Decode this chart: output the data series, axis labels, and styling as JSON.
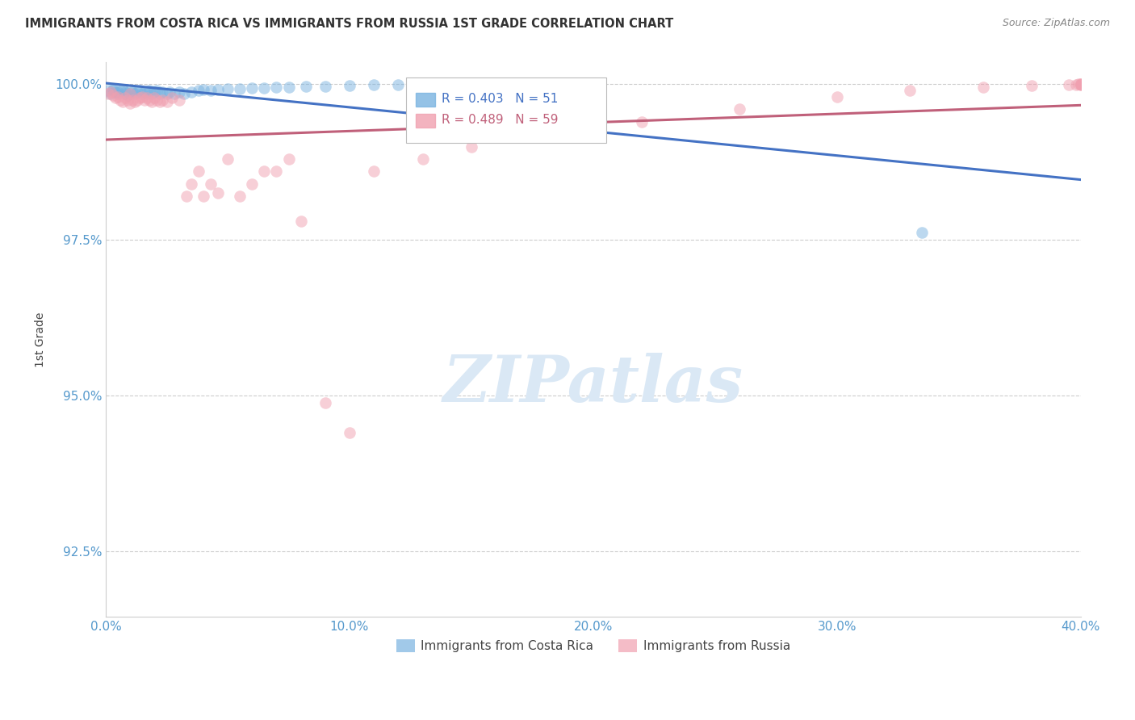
{
  "title": "IMMIGRANTS FROM COSTA RICA VS IMMIGRANTS FROM RUSSIA 1ST GRADE CORRELATION CHART",
  "source": "Source: ZipAtlas.com",
  "ylabel": "1st Grade",
  "xmin": 0.0,
  "xmax": 0.4,
  "ymin": 0.9145,
  "ymax": 1.0035,
  "yticks": [
    0.925,
    0.95,
    0.975,
    1.0
  ],
  "ytick_labels": [
    "92.5%",
    "95.0%",
    "97.5%",
    "100.0%"
  ],
  "xtick_labels": [
    "0.0%",
    "10.0%",
    "20.0%",
    "30.0%",
    "40.0%"
  ],
  "xtick_vals": [
    0.0,
    0.1,
    0.2,
    0.3,
    0.4
  ],
  "costa_rica_color": "#7ab3e0",
  "russia_color": "#f0a0b0",
  "costa_rica_line_color": "#4472c4",
  "russia_line_color": "#c0607a",
  "watermark_color": "#dae8f5",
  "background_color": "#ffffff",
  "grid_color": "#cccccc",
  "axis_color": "#cccccc",
  "title_fontsize": 11,
  "tick_label_color": "#5599cc",
  "cr_R": "R = 0.403",
  "cr_N": "N = 51",
  "ru_R": "R = 0.489",
  "ru_N": "N = 59",
  "legend_cr": "Immigrants from Costa Rica",
  "legend_ru": "Immigrants from Russia",
  "costa_rica_x": [
    0.001,
    0.002,
    0.003,
    0.003,
    0.004,
    0.005,
    0.005,
    0.006,
    0.007,
    0.008,
    0.008,
    0.009,
    0.01,
    0.01,
    0.011,
    0.012,
    0.013,
    0.014,
    0.015,
    0.016,
    0.017,
    0.018,
    0.019,
    0.02,
    0.021,
    0.022,
    0.023,
    0.025,
    0.026,
    0.028,
    0.03,
    0.032,
    0.035,
    0.038,
    0.04,
    0.043,
    0.046,
    0.05,
    0.055,
    0.06,
    0.065,
    0.07,
    0.075,
    0.082,
    0.09,
    0.1,
    0.11,
    0.12,
    0.13,
    0.15,
    0.335
  ],
  "costa_rica_y": [
    0.999,
    0.9985,
    0.999,
    0.9992,
    0.9988,
    0.9985,
    0.9988,
    0.999,
    0.9992,
    0.9985,
    0.9988,
    0.9982,
    0.9985,
    0.999,
    0.9988,
    0.9985,
    0.9988,
    0.999,
    0.9985,
    0.9988,
    0.9985,
    0.999,
    0.9985,
    0.9988,
    0.999,
    0.9985,
    0.9988,
    0.9985,
    0.9988,
    0.9985,
    0.9988,
    0.9985,
    0.9988,
    0.999,
    0.9992,
    0.999,
    0.9992,
    0.9993,
    0.9993,
    0.9994,
    0.9994,
    0.9995,
    0.9996,
    0.9997,
    0.9997,
    0.9998,
    0.9999,
    0.9999,
    1.0,
    1.0,
    0.9762
  ],
  "russia_x": [
    0.001,
    0.002,
    0.003,
    0.004,
    0.005,
    0.006,
    0.007,
    0.008,
    0.009,
    0.01,
    0.01,
    0.011,
    0.012,
    0.013,
    0.014,
    0.015,
    0.016,
    0.017,
    0.018,
    0.019,
    0.02,
    0.021,
    0.022,
    0.023,
    0.025,
    0.027,
    0.03,
    0.033,
    0.035,
    0.038,
    0.04,
    0.043,
    0.046,
    0.05,
    0.055,
    0.06,
    0.065,
    0.07,
    0.075,
    0.08,
    0.09,
    0.1,
    0.11,
    0.13,
    0.15,
    0.18,
    0.22,
    0.26,
    0.3,
    0.33,
    0.36,
    0.38,
    0.395,
    0.398,
    0.399,
    0.4,
    0.4,
    0.4,
    0.4
  ],
  "russia_y": [
    0.9985,
    0.9988,
    0.9982,
    0.9978,
    0.998,
    0.9975,
    0.9972,
    0.9978,
    0.9975,
    0.997,
    0.9985,
    0.9975,
    0.9972,
    0.9975,
    0.9978,
    0.998,
    0.9975,
    0.9978,
    0.9975,
    0.9972,
    0.9978,
    0.9975,
    0.9972,
    0.9975,
    0.9972,
    0.9978,
    0.9975,
    0.982,
    0.984,
    0.986,
    0.982,
    0.984,
    0.9825,
    0.988,
    0.982,
    0.984,
    0.986,
    0.986,
    0.988,
    0.978,
    0.9488,
    0.944,
    0.986,
    0.988,
    0.99,
    0.992,
    0.994,
    0.996,
    0.998,
    0.999,
    0.9995,
    0.9998,
    0.9999,
    0.9999,
    1.0,
    1.0,
    0.9999,
    0.9999,
    1.0
  ]
}
